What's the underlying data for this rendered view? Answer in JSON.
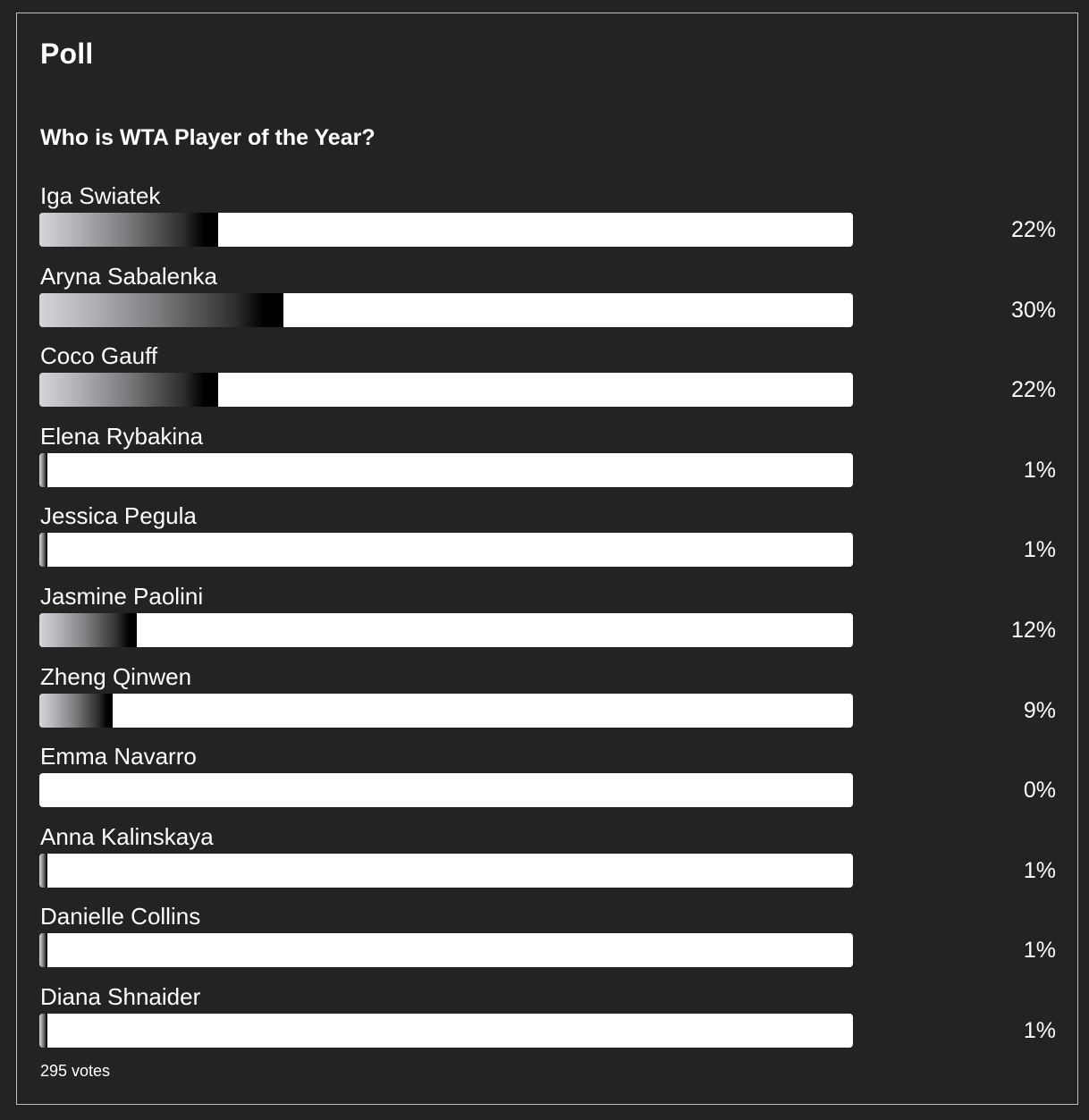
{
  "poll": {
    "heading": "Poll",
    "question": "Who is WTA Player of the Year?",
    "votes_text": "295 votes",
    "options": [
      {
        "label": "Iga Swiatek",
        "percent_text": "22%",
        "percent": 22
      },
      {
        "label": "Aryna Sabalenka",
        "percent_text": "30%",
        "percent": 30
      },
      {
        "label": "Coco Gauff",
        "percent_text": "22%",
        "percent": 22
      },
      {
        "label": "Elena Rybakina",
        "percent_text": "1%",
        "percent": 1
      },
      {
        "label": "Jessica Pegula",
        "percent_text": "1%",
        "percent": 1
      },
      {
        "label": "Jasmine Paolini",
        "percent_text": "12%",
        "percent": 12
      },
      {
        "label": "Zheng Qinwen",
        "percent_text": "9%",
        "percent": 9
      },
      {
        "label": "Emma Navarro",
        "percent_text": "0%",
        "percent": 0
      },
      {
        "label": "Anna Kalinskaya",
        "percent_text": "1%",
        "percent": 1
      },
      {
        "label": "Danielle Collins",
        "percent_text": "1%",
        "percent": 1
      },
      {
        "label": "Diana Shnaider",
        "percent_text": "1%",
        "percent": 1
      }
    ]
  },
  "colors": {
    "background": "#232323",
    "border": "#bdbdbd",
    "track": "#ffffff",
    "text": "#ffffff"
  }
}
